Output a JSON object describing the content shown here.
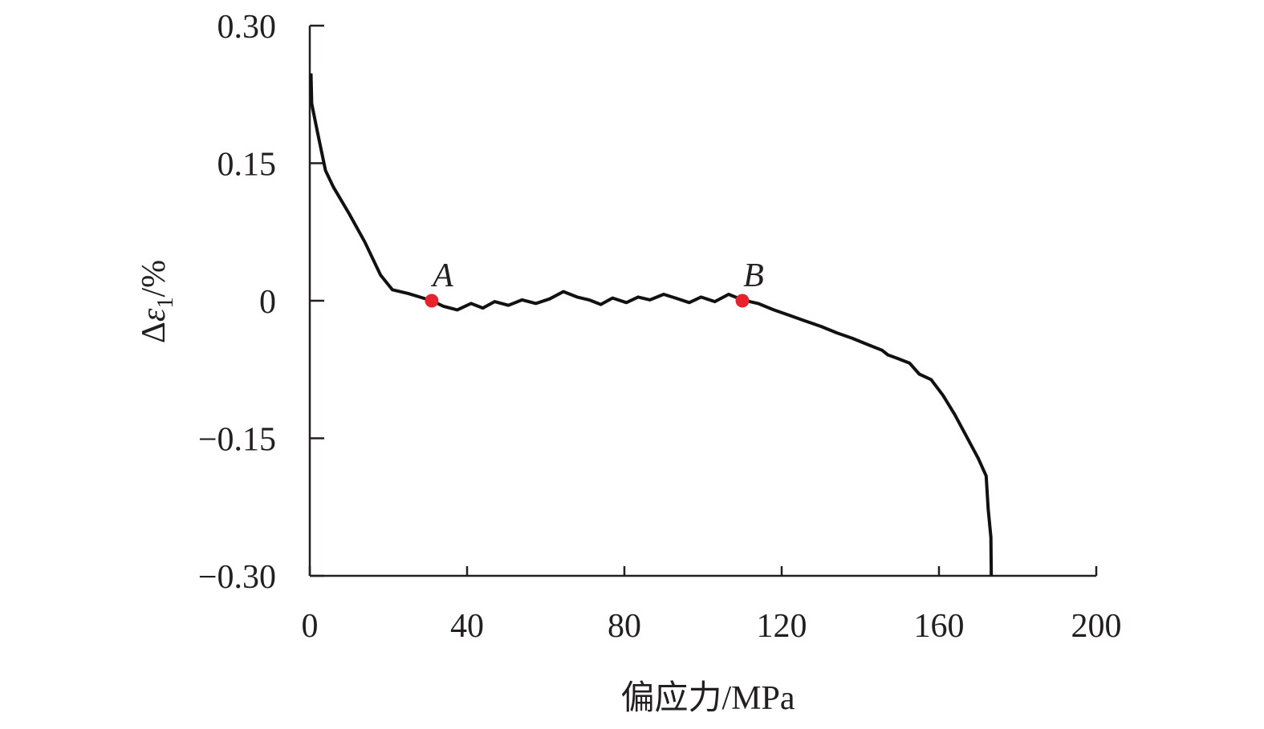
{
  "chart_data": {
    "type": "line",
    "title": "",
    "xlabel": "偏应力/MPa",
    "ylabel": {
      "prefix": "Δ",
      "symbol": "ε",
      "subscript": "1",
      "suffix": "/%"
    },
    "xlim": [
      0,
      200
    ],
    "ylim": [
      -0.3,
      0.3
    ],
    "x_ticks": [
      {
        "value": 0,
        "label": "0"
      },
      {
        "value": 40,
        "label": "40"
      },
      {
        "value": 80,
        "label": "80"
      },
      {
        "value": 120,
        "label": "120"
      },
      {
        "value": 160,
        "label": "160"
      },
      {
        "value": 200,
        "label": "200"
      }
    ],
    "y_ticks": [
      {
        "value": 0.3,
        "label": "0.30"
      },
      {
        "value": 0.15,
        "label": "0.15"
      },
      {
        "value": 0,
        "label": "0"
      },
      {
        "value": -0.15,
        "label": "−0.15"
      },
      {
        "value": -0.3,
        "label": "−0.30"
      }
    ],
    "grid": false,
    "line_color": "#111111",
    "marker_color": "#e8222d",
    "series": [
      {
        "x": [
          0.3,
          0.5,
          2,
          4,
          6,
          10,
          14,
          18,
          21,
          25,
          28,
          31,
          34,
          37.5,
          41,
          44,
          47,
          50.5,
          54,
          57.5,
          61,
          64.5,
          68,
          71,
          74,
          77,
          80.5,
          83.5,
          86.5,
          90,
          93,
          96.5,
          99.5,
          103,
          106.5,
          110,
          114,
          118,
          122,
          126,
          130,
          134,
          138,
          142,
          145.5,
          147,
          149.5,
          152.5,
          155,
          158,
          161,
          164,
          167,
          170,
          172,
          172.5,
          173.2,
          173.3
        ],
        "y": [
          0.248,
          0.215,
          0.183,
          0.142,
          0.124,
          0.095,
          0.064,
          0.028,
          0.012,
          0.008,
          0.004,
          0.0,
          -0.006,
          -0.01,
          -0.003,
          -0.008,
          -0.001,
          -0.005,
          0.001,
          -0.003,
          0.002,
          0.01,
          0.004,
          0.001,
          -0.004,
          0.003,
          -0.002,
          0.004,
          0.001,
          0.007,
          0.003,
          -0.002,
          0.004,
          -0.001,
          0.007,
          0.001,
          -0.003,
          -0.01,
          -0.016,
          -0.022,
          -0.028,
          -0.035,
          -0.041,
          -0.048,
          -0.054,
          -0.059,
          -0.063,
          -0.068,
          -0.08,
          -0.086,
          -0.103,
          -0.124,
          -0.148,
          -0.172,
          -0.191,
          -0.227,
          -0.258,
          -0.3
        ]
      }
    ],
    "annotations": [
      {
        "label": "A",
        "x": 31,
        "y": 0.0
      },
      {
        "label": "B",
        "x": 110,
        "y": 0.0
      }
    ]
  }
}
